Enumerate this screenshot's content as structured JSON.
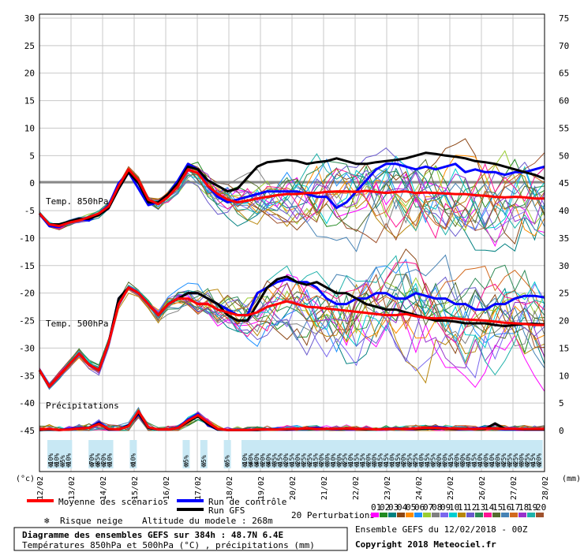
{
  "chart_data": {
    "type": "line",
    "x_tick_labels": [
      "12/02",
      "13/02",
      "14/02",
      "15/02",
      "16/02",
      "17/02",
      "18/02",
      "19/02",
      "20/02",
      "21/02",
      "22/02",
      "23/02",
      "24/02",
      "25/02",
      "26/02",
      "27/02",
      "28/02"
    ],
    "x_range_hours": [
      0,
      384
    ],
    "left_axis": {
      "ticks": [
        30,
        25,
        20,
        15,
        10,
        5,
        0,
        -5,
        -10,
        -15,
        -20,
        -25,
        -30,
        -35,
        -40,
        -45
      ],
      "unit_label": "(°c)",
      "range": [
        -45,
        30
      ]
    },
    "right_axis": {
      "ticks": [
        75,
        70,
        65,
        60,
        55,
        50,
        45,
        40,
        35,
        30,
        25,
        20,
        15,
        10,
        5,
        0
      ],
      "unit_label": "(mm)"
    },
    "panel_labels": {
      "t850": "Temp. 850hPa",
      "t500": "Temp. 500hPa",
      "precip": "Précipitations"
    },
    "series": [
      {
        "name": "Moyenne des scénarios",
        "color": "#ff0000",
        "t850": [
          -5.5,
          -7.5,
          -7.8,
          -7.2,
          -6.8,
          -6.2,
          -5.5,
          -4.2,
          -0.5,
          2.5,
          0.5,
          -3.0,
          -3.8,
          -2.5,
          -0.5,
          2.5,
          1.8,
          -0.5,
          -2.0,
          -3.0,
          -3.5,
          -3.2,
          -2.8,
          -2.5,
          -2.2,
          -2.0,
          -2.0,
          -1.8,
          -1.8,
          -1.6,
          -1.5,
          -1.5,
          -1.6,
          -1.4,
          -1.6,
          -1.8,
          -1.6,
          -1.5,
          -1.8,
          -1.7,
          -1.8,
          -1.9,
          -2.0,
          -2.0,
          -2.2,
          -2.3,
          -2.5,
          -2.6,
          -2.5,
          -2.6,
          -2.8,
          -2.8
        ],
        "t500": [
          -34,
          -37,
          -35,
          -33,
          -31,
          -33,
          -34,
          -29,
          -22,
          -19,
          -20,
          -22,
          -24,
          -22,
          -21,
          -21,
          -22,
          -22,
          -23,
          -23.5,
          -24,
          -24,
          -23.5,
          -22.5,
          -22,
          -21.5,
          -22,
          -22.5,
          -22.6,
          -22.8,
          -23,
          -23.2,
          -23.4,
          -23.6,
          -23.8,
          -24,
          -24,
          -23.8,
          -24.2,
          -24.5,
          -24.6,
          -24.5,
          -24.6,
          -24.8,
          -24.9,
          -25,
          -25.2,
          -25.4,
          -25.5,
          -25.6,
          -25.8,
          -25.8
        ],
        "precip_mm": [
          0.2,
          0.3,
          0.1,
          0.2,
          0.4,
          0.5,
          1.2,
          0.3,
          0.2,
          0.8,
          3.5,
          0.6,
          0.2,
          0.2,
          0.5,
          1.8,
          2.8,
          1.5,
          0.3,
          0.1,
          0.1,
          0.1,
          0.2,
          0.2,
          0.2,
          0.3,
          0.3,
          0.4,
          0.3,
          0.3,
          0.3,
          0.4,
          0.3,
          0.3,
          0.2,
          0.3,
          0.3,
          0.3,
          0.4,
          0.5,
          0.5,
          0.4,
          0.4,
          0.3,
          0.3,
          0.4,
          0.4,
          0.3,
          0.3,
          0.3,
          0.3,
          0.3
        ]
      },
      {
        "name": "Run de contrôle",
        "color": "#0000ff",
        "t850": [
          -5.5,
          -7.8,
          -8.0,
          -7.0,
          -6.5,
          -6.8,
          -5.5,
          -4.0,
          0,
          2.0,
          -1.0,
          -4.0,
          -3.5,
          -2.0,
          0.5,
          3.5,
          2.5,
          -0.5,
          -2.5,
          -3.5,
          -3.0,
          -2.5,
          -2.0,
          -1.5,
          -1.5,
          -1.5,
          -1.5,
          -2.0,
          -2.5,
          -2.5,
          -4.5,
          -3.5,
          -1.5,
          0.5,
          2.5,
          3.5,
          3.5,
          3.0,
          2.5,
          3.0,
          2.5,
          3.0,
          3.5,
          2.0,
          2.5,
          2.0,
          2.0,
          1.5,
          2.0,
          2.0,
          2.5,
          3.0
        ],
        "t500": [
          -34,
          -37,
          -35,
          -33,
          -31,
          -33,
          -34,
          -29,
          -21,
          -19,
          -20,
          -22,
          -24,
          -22,
          -21,
          -20,
          -20,
          -21,
          -22,
          -23,
          -24,
          -24,
          -20,
          -19,
          -18,
          -17.5,
          -18,
          -18,
          -19,
          -21,
          -22,
          -22,
          -21,
          -21,
          -20,
          -20,
          -21,
          -21,
          -20,
          -20.5,
          -21,
          -21,
          -22,
          -22,
          -23,
          -23,
          -22,
          -22,
          -21,
          -20.5,
          -20.5,
          -20.8
        ],
        "precip_mm": [
          0.1,
          0.2,
          0.1,
          0.3,
          0.5,
          0.5,
          1.5,
          0.2,
          0.2,
          1.0,
          3.0,
          0.5,
          0.2,
          0.2,
          0.6,
          2.0,
          3.0,
          1.0,
          0.2,
          0.1,
          0.1,
          0.1,
          0.1,
          0.2,
          0.3,
          0.2,
          0.3,
          0.4,
          0.5,
          0.3,
          0.2,
          0.4,
          0.3,
          0.3,
          0.2,
          0.3,
          0.4,
          0.3,
          0.4,
          0.5,
          0.6,
          0.5,
          0.3,
          0.3,
          0.4,
          0.5,
          0.4,
          0.2,
          0.2,
          0.2,
          0.3,
          0.3
        ]
      },
      {
        "name": "Run GFS",
        "color": "#000000",
        "t850": [
          -5.5,
          -7.5,
          -7.5,
          -7.0,
          -6.5,
          -6.5,
          -5.8,
          -4.5,
          -1.0,
          2.0,
          0.0,
          -3.5,
          -3.5,
          -2.0,
          0.0,
          3.0,
          2.5,
          0.5,
          -0.5,
          -1.5,
          -1.0,
          1.0,
          3.0,
          3.8,
          4.0,
          4.2,
          4.0,
          3.5,
          3.8,
          4.0,
          4.5,
          4.0,
          3.5,
          3.5,
          3.8,
          4.0,
          4.2,
          4.5,
          5.0,
          5.5,
          5.3,
          5.0,
          4.8,
          4.5,
          4.0,
          3.8,
          3.5,
          3.0,
          2.5,
          2.0,
          1.5,
          0.8
        ],
        "t500": [
          -34,
          -37,
          -35,
          -33,
          -31,
          -33,
          -34,
          -29,
          -21,
          -19,
          -20,
          -22,
          -24,
          -22,
          -21,
          -20,
          -20,
          -21,
          -22,
          -24,
          -25,
          -25,
          -22,
          -19,
          -17.5,
          -17,
          -18,
          -18.5,
          -18,
          -19,
          -20,
          -20,
          -21,
          -22,
          -22.5,
          -23,
          -23,
          -23.5,
          -24,
          -24.5,
          -25,
          -25,
          -25.2,
          -25.5,
          -25.5,
          -25.5,
          -25.8,
          -26,
          -25.8,
          -25.6,
          -25.6,
          -25.7
        ],
        "precip_mm": [
          0.1,
          0.2,
          0.1,
          0.2,
          0.4,
          0.5,
          1.3,
          0.2,
          0.2,
          0.9,
          3.2,
          0.5,
          0.2,
          0.2,
          0.5,
          1.6,
          2.6,
          1.2,
          0.2,
          0.1,
          0.1,
          0.1,
          0.1,
          0.2,
          0.2,
          0.2,
          0.3,
          0.3,
          0.3,
          0.3,
          0.3,
          0.3,
          0.3,
          0.2,
          0.2,
          0.3,
          0.3,
          0.3,
          0.3,
          0.4,
          0.4,
          0.4,
          0.3,
          0.3,
          0.3,
          0.3,
          1.3,
          0.3,
          0.3,
          0.2,
          0.2,
          0.2
        ]
      }
    ],
    "perturbations": {
      "count": 20,
      "colors": [
        "#ff00ff",
        "#228b22",
        "#008080",
        "#8b4513",
        "#ff8c00",
        "#1e90ff",
        "#9acd32",
        "#808080",
        "#7b68ee",
        "#00ced1",
        "#b8860b",
        "#6a5acd",
        "#2e8b57",
        "#ff1493",
        "#556b2f",
        "#4682b4",
        "#d2691e",
        "#9932cc",
        "#20b2aa",
        "#a0522d"
      ]
    },
    "snow_risk": {
      "labels": [
        "10%",
        "10%",
        "5%",
        "10%",
        "",
        "",
        "",
        "70%",
        "85%",
        "20%",
        "10%",
        "",
        "",
        "",
        "10%",
        "",
        "",
        "",
        "",
        "",
        "",
        "",
        "",
        "5%",
        "",
        "",
        "5%",
        "",
        "",
        "",
        "5%",
        "",
        "",
        "10%",
        "40%",
        "40%",
        "20%",
        "40%",
        "35%",
        "15%",
        "20%",
        "15%",
        "20%",
        "25%",
        "25%",
        "15%",
        "20%",
        "30%",
        "10%",
        "20%",
        "25%",
        "10%",
        "15%",
        "15%",
        "20%",
        "30%",
        "15%",
        "15%",
        "10%",
        "15%",
        "20%",
        "25%",
        "25%",
        "10%",
        "15%",
        "25%",
        "20%",
        "20%",
        "15%",
        "20%",
        "30%",
        "10%",
        "15%",
        "10%",
        "20%",
        "10%",
        "20%",
        "25%",
        "25%",
        "25%",
        "30%",
        "25%",
        "15%",
        "20%",
        "25%"
      ]
    }
  },
  "legend": {
    "mean": "Moyenne des scénarios",
    "control": "Run de contrôle",
    "gfs": "Run GFS",
    "perturbations": "20 Perturbations",
    "perturbation_numbers": [
      "01",
      "02",
      "03",
      "04",
      "05",
      "06",
      "07",
      "08",
      "09",
      "10",
      "11",
      "12",
      "13",
      "14",
      "15",
      "16",
      "17",
      "18",
      "19",
      "20"
    ],
    "snow": "Risque neige",
    "altitude": "Altitude du modele : 268m"
  },
  "footer": {
    "title": "Diagramme des ensembles GEFS sur 384h : 48.7N 6.4E",
    "subtitle": "Températures 850hPa et 500hPa (°C) , précipitations (mm)",
    "run": "Ensemble GEFS du 12/02/2018 - 00Z",
    "copyright": "Copyright 2018 Meteociel.fr"
  }
}
